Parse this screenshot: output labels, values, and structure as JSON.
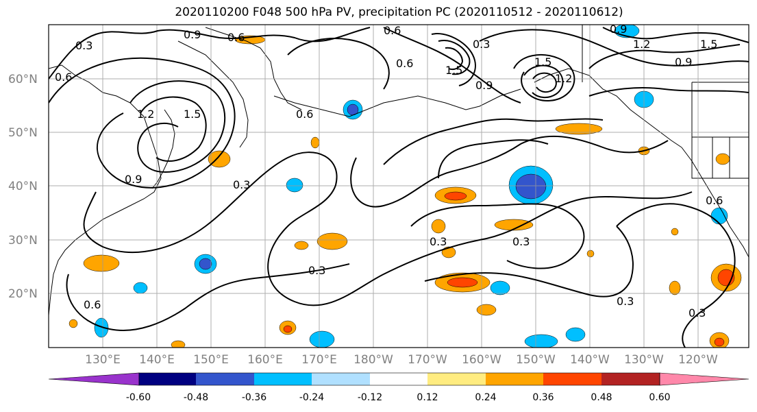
{
  "title": "2020110200 F048 500 hPa PV, precipitation PC (2020110512 - 2020110612)",
  "lat_labels": [
    "60°N",
    "50°N",
    "40°N",
    "30°N",
    "20°N"
  ],
  "lon_labels": [
    "130°E",
    "140°E",
    "150°E",
    "160°E",
    "170°E",
    "180°W",
    "170°W",
    "160°W",
    "150°W",
    "140°W",
    "130°W",
    "120°W"
  ],
  "contour_labels": [
    "0.3",
    "0.9",
    "0.6",
    "0.6",
    "1.2",
    "1.5",
    "0.9",
    "0.6",
    "1.5",
    "0.9",
    "0.3",
    "0.9",
    "1.5",
    "0.6",
    "1.2",
    "0.3",
    "0.3",
    "0.3",
    "0.3",
    "0.6",
    "0.3",
    "0.6",
    "1.2",
    "1.5",
    "0.9",
    "0.6",
    "0.3"
  ],
  "colorbar": {
    "colors": [
      "#9933cc",
      "#000080",
      "#3355cc",
      "#00bfff",
      "#b0e0ff",
      "#ffffff",
      "#ffec80",
      "#ffa500",
      "#ff4500",
      "#b22222",
      "#ff88aa"
    ],
    "tick_labels": [
      "-0.60",
      "-0.48",
      "-0.36",
      "-0.24",
      "-0.12",
      "0.12",
      "0.24",
      "0.36",
      "0.48",
      "0.60"
    ]
  }
}
